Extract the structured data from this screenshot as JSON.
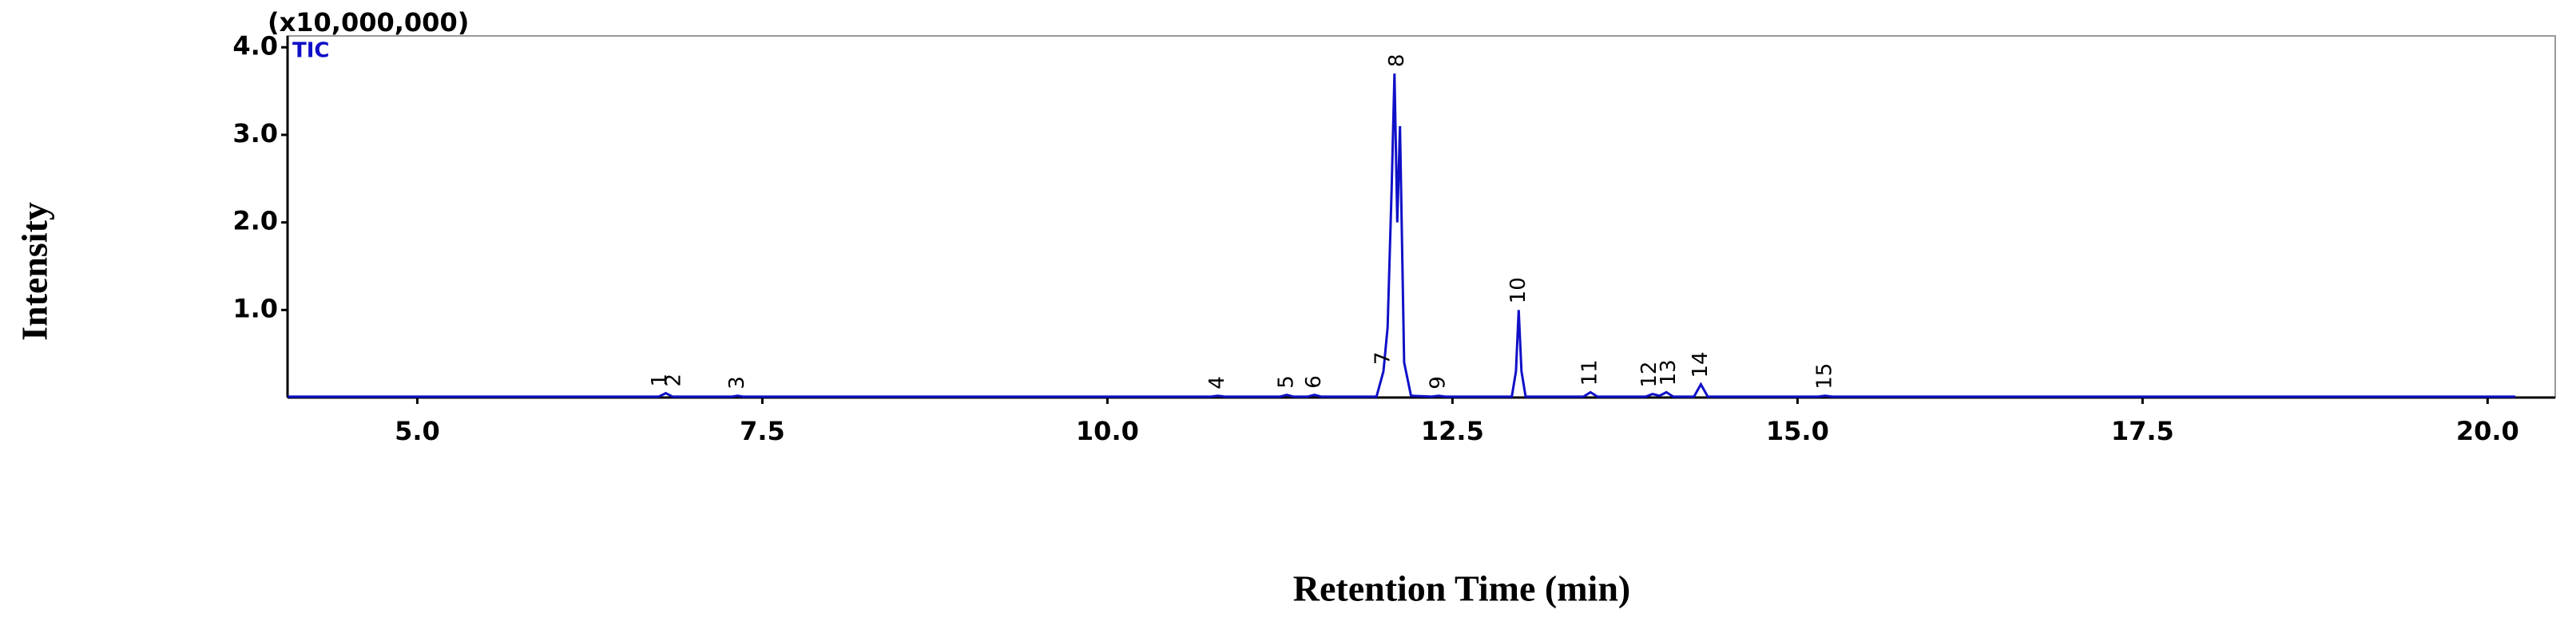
{
  "chart_data": {
    "type": "line",
    "x_label": "Retention Time (min)",
    "y_label": "Intensity",
    "y_multiplier": "(x10,000,000)",
    "trace_label": "TIC",
    "color": "#1010c8",
    "xlim": [
      4.06,
      20.49
    ],
    "ylim": [
      0,
      4.13
    ],
    "xticks": [
      {
        "value": 5,
        "label": "5.0"
      },
      {
        "value": 7.5,
        "label": "7.5"
      },
      {
        "value": 10,
        "label": "10.0"
      },
      {
        "value": 12.5,
        "label": "12.5"
      },
      {
        "value": 15,
        "label": "15.0"
      },
      {
        "value": 17.5,
        "label": "17.5"
      },
      {
        "value": 20,
        "label": "20.0"
      }
    ],
    "yticks": [
      {
        "value": 1,
        "label": "1.0"
      },
      {
        "value": 2,
        "label": "2.0"
      },
      {
        "value": 3,
        "label": "3.0"
      },
      {
        "value": 4,
        "label": "4.0"
      }
    ],
    "x": [
      4.06,
      6.75,
      6.8,
      6.85,
      7.28,
      7.32,
      7.36,
      10.75,
      10.8,
      10.85,
      11.25,
      11.3,
      11.35,
      11.45,
      11.5,
      11.55,
      11.95,
      12.0,
      12.03,
      12.06,
      12.08,
      12.1,
      12.12,
      12.15,
      12.2,
      12.35,
      12.4,
      12.45,
      12.93,
      12.96,
      12.98,
      13.0,
      13.03,
      13.45,
      13.5,
      13.55,
      13.9,
      13.95,
      14.0,
      14.05,
      14.1,
      14.25,
      14.3,
      14.35,
      15.15,
      15.2,
      15.25,
      20.2
    ],
    "values": [
      0.01,
      0.01,
      0.05,
      0.01,
      0.01,
      0.02,
      0.01,
      0.01,
      0.02,
      0.01,
      0.01,
      0.03,
      0.01,
      0.01,
      0.03,
      0.01,
      0.01,
      0.3,
      0.8,
      2.4,
      3.7,
      2.0,
      3.1,
      0.4,
      0.02,
      0.01,
      0.02,
      0.01,
      0.01,
      0.3,
      1.0,
      0.3,
      0.01,
      0.01,
      0.06,
      0.01,
      0.01,
      0.04,
      0.02,
      0.06,
      0.01,
      0.01,
      0.15,
      0.01,
      0.01,
      0.02,
      0.01,
      0.01
    ],
    "peaks": [
      {
        "label": "1",
        "x": 6.76,
        "y": 0.05
      },
      {
        "label": "2",
        "x": 6.86,
        "y": 0.05
      },
      {
        "label": "3",
        "x": 7.32,
        "y": 0.02
      },
      {
        "label": "4",
        "x": 10.8,
        "y": 0.02
      },
      {
        "label": "5",
        "x": 11.3,
        "y": 0.03
      },
      {
        "label": "6",
        "x": 11.5,
        "y": 0.03
      },
      {
        "label": "7",
        "x": 12.0,
        "y": 0.3
      },
      {
        "label": "8",
        "x": 12.1,
        "y": 3.7
      },
      {
        "label": "9",
        "x": 12.4,
        "y": 0.02
      },
      {
        "label": "10",
        "x": 12.98,
        "y": 1.0
      },
      {
        "label": "11",
        "x": 13.5,
        "y": 0.06
      },
      {
        "label": "12",
        "x": 13.93,
        "y": 0.04
      },
      {
        "label": "13",
        "x": 14.07,
        "y": 0.06
      },
      {
        "label": "14",
        "x": 14.3,
        "y": 0.15
      },
      {
        "label": "15",
        "x": 15.2,
        "y": 0.02
      }
    ]
  }
}
